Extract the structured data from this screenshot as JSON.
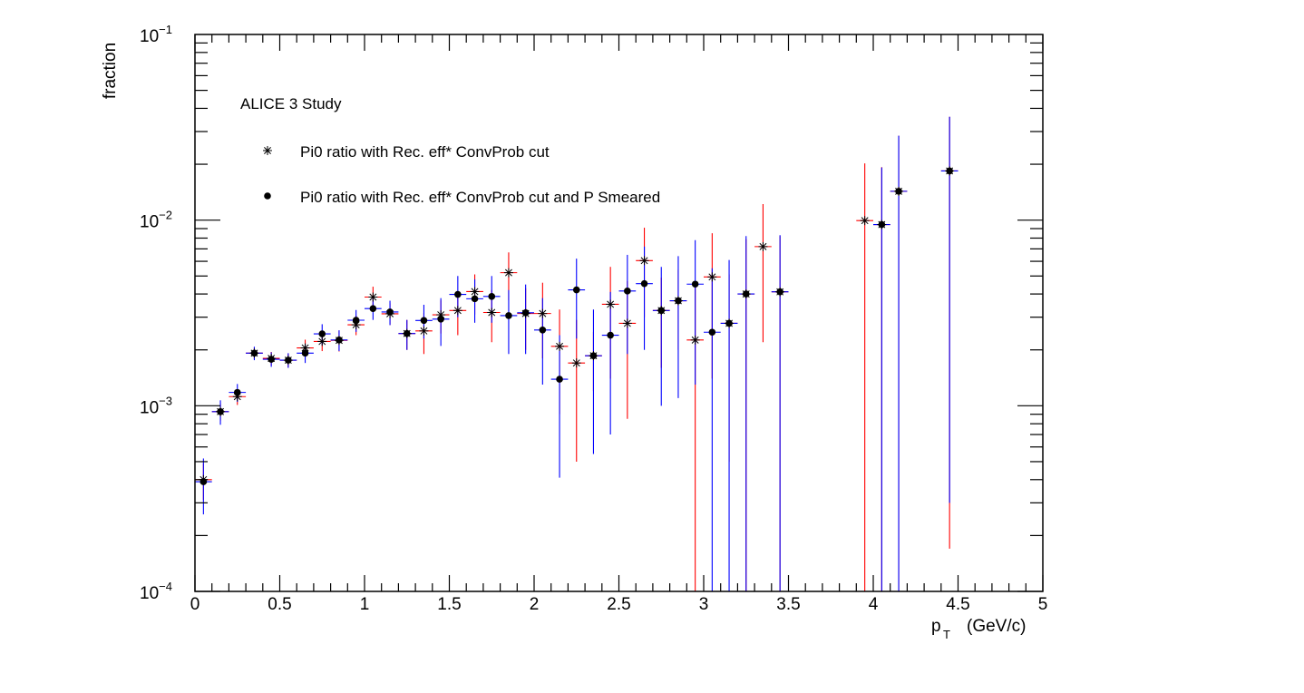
{
  "chart_data": {
    "type": "scatter",
    "title": "",
    "xlabel_main": "p",
    "xlabel_sub": "T",
    "xlabel_units": "(GeV/c)",
    "ylabel": "fraction",
    "xlim": [
      0,
      5
    ],
    "ylim": [
      0.0001,
      0.1
    ],
    "yscale": "log",
    "grid": false,
    "legend_position": "top-left",
    "annotation": "ALICE 3 Study",
    "x_ticks": [
      "0",
      "0.5",
      "1",
      "1.5",
      "2",
      "2.5",
      "3",
      "3.5",
      "4",
      "4.5",
      "5"
    ],
    "y_ticks": [
      {
        "base": "10",
        "exp": "−4"
      },
      {
        "base": "10",
        "exp": "−3"
      },
      {
        "base": "10",
        "exp": "−2"
      },
      {
        "base": "10",
        "exp": "−1"
      }
    ],
    "series": [
      {
        "name": "Pi0 ratio with Rec. eff* ConvProb cut",
        "marker": "star",
        "error_color": "#ff0000",
        "points": [
          {
            "x": 0.05,
            "y": 0.0004,
            "lo": 0.00031,
            "hi": 0.00049
          },
          {
            "x": 0.15,
            "y": 0.00093,
            "lo": 0.00083,
            "hi": 0.00103
          },
          {
            "x": 0.25,
            "y": 0.00112,
            "lo": 0.00101,
            "hi": 0.00123
          },
          {
            "x": 0.35,
            "y": 0.00192,
            "lo": 0.00178,
            "hi": 0.00206
          },
          {
            "x": 0.45,
            "y": 0.0018,
            "lo": 0.00165,
            "hi": 0.00195
          },
          {
            "x": 0.55,
            "y": 0.00176,
            "lo": 0.00161,
            "hi": 0.00191
          },
          {
            "x": 0.65,
            "y": 0.00205,
            "lo": 0.00183,
            "hi": 0.00227
          },
          {
            "x": 0.75,
            "y": 0.00222,
            "lo": 0.00197,
            "hi": 0.00247
          },
          {
            "x": 0.85,
            "y": 0.00225,
            "lo": 0.00196,
            "hi": 0.00254
          },
          {
            "x": 0.95,
            "y": 0.00273,
            "lo": 0.0024,
            "hi": 0.00306
          },
          {
            "x": 1.05,
            "y": 0.00385,
            "lo": 0.00338,
            "hi": 0.00438
          },
          {
            "x": 1.15,
            "y": 0.00313,
            "lo": 0.00272,
            "hi": 0.00356
          },
          {
            "x": 1.25,
            "y": 0.00245,
            "lo": 0.002,
            "hi": 0.0029
          },
          {
            "x": 1.35,
            "y": 0.00253,
            "lo": 0.0019,
            "hi": 0.00316
          },
          {
            "x": 1.45,
            "y": 0.00309,
            "lo": 0.00245,
            "hi": 0.0037
          },
          {
            "x": 1.55,
            "y": 0.00326,
            "lo": 0.0024,
            "hi": 0.0041
          },
          {
            "x": 1.65,
            "y": 0.00412,
            "lo": 0.0031,
            "hi": 0.0051
          },
          {
            "x": 1.75,
            "y": 0.00318,
            "lo": 0.0022,
            "hi": 0.0042
          },
          {
            "x": 1.85,
            "y": 0.00521,
            "lo": 0.0037,
            "hi": 0.0067
          },
          {
            "x": 1.95,
            "y": 0.00314,
            "lo": 0.002,
            "hi": 0.0043
          },
          {
            "x": 2.05,
            "y": 0.00314,
            "lo": 0.0018,
            "hi": 0.0046
          },
          {
            "x": 2.15,
            "y": 0.00209,
            "lo": 0.0009,
            "hi": 0.0033
          },
          {
            "x": 2.25,
            "y": 0.0017,
            "lo": 0.0005,
            "hi": 0.0029
          },
          {
            "x": 2.35,
            "y": 0.00186,
            "lo": 0.0012,
            "hi": 0.0025
          },
          {
            "x": 2.45,
            "y": 0.00352,
            "lo": 0.0014,
            "hi": 0.0056
          },
          {
            "x": 2.55,
            "y": 0.00278,
            "lo": 0.00085,
            "hi": 0.0047
          },
          {
            "x": 2.65,
            "y": 0.00605,
            "lo": 0.003,
            "hi": 0.0091
          },
          {
            "x": 2.75,
            "y": 0.00326,
            "lo": 0.0016,
            "hi": 0.0049
          },
          {
            "x": 2.85,
            "y": 0.00368,
            "lo": 0.002,
            "hi": 0.0054
          },
          {
            "x": 2.95,
            "y": 0.00226,
            "lo": 0.0001,
            "hi": 0.0046
          },
          {
            "x": 3.05,
            "y": 0.00494,
            "lo": 0.0014,
            "hi": 0.0085
          },
          {
            "x": 3.15,
            "y": 0.00278,
            "lo": 0.0005,
            "hi": 0.0051
          },
          {
            "x": 3.25,
            "y": 0.004,
            "lo": 0.0001,
            "hi": 0.0079
          },
          {
            "x": 3.35,
            "y": 0.0072,
            "lo": 0.0022,
            "hi": 0.0122
          },
          {
            "x": 3.45,
            "y": 0.00411,
            "lo": 0.0001,
            "hi": 0.0082
          },
          {
            "x": 3.95,
            "y": 0.00994,
            "lo": 0.0001,
            "hi": 0.0202
          },
          {
            "x": 4.05,
            "y": 0.00946,
            "lo": 0.0001,
            "hi": 0.0193
          },
          {
            "x": 4.15,
            "y": 0.0143,
            "lo": 0.0001,
            "hi": 0.0285
          },
          {
            "x": 4.45,
            "y": 0.0184,
            "lo": 0.00017,
            "hi": 0.036
          }
        ]
      },
      {
        "name": "Pi0 ratio with Rec. eff* ConvProb cut and P Smeared",
        "marker": "circle",
        "error_color": "#0000ff",
        "points": [
          {
            "x": 0.05,
            "y": 0.00039,
            "lo": 0.00026,
            "hi": 0.00052
          },
          {
            "x": 0.15,
            "y": 0.00093,
            "lo": 0.00079,
            "hi": 0.00107
          },
          {
            "x": 0.25,
            "y": 0.00118,
            "lo": 0.00105,
            "hi": 0.00131
          },
          {
            "x": 0.35,
            "y": 0.00192,
            "lo": 0.00176,
            "hi": 0.00208
          },
          {
            "x": 0.45,
            "y": 0.00178,
            "lo": 0.00162,
            "hi": 0.00194
          },
          {
            "x": 0.55,
            "y": 0.00176,
            "lo": 0.0016,
            "hi": 0.00192
          },
          {
            "x": 0.65,
            "y": 0.00192,
            "lo": 0.0017,
            "hi": 0.00214
          },
          {
            "x": 0.75,
            "y": 0.00244,
            "lo": 0.00213,
            "hi": 0.00275
          },
          {
            "x": 0.85,
            "y": 0.00226,
            "lo": 0.00197,
            "hi": 0.00255
          },
          {
            "x": 0.95,
            "y": 0.00289,
            "lo": 0.0025,
            "hi": 0.00328
          },
          {
            "x": 1.05,
            "y": 0.00334,
            "lo": 0.0029,
            "hi": 0.00378
          },
          {
            "x": 1.15,
            "y": 0.0032,
            "lo": 0.00272,
            "hi": 0.00368
          },
          {
            "x": 1.25,
            "y": 0.00245,
            "lo": 0.002,
            "hi": 0.0029
          },
          {
            "x": 1.35,
            "y": 0.00288,
            "lo": 0.0023,
            "hi": 0.0035
          },
          {
            "x": 1.45,
            "y": 0.00293,
            "lo": 0.0021,
            "hi": 0.0038
          },
          {
            "x": 1.55,
            "y": 0.00398,
            "lo": 0.003,
            "hi": 0.005
          },
          {
            "x": 1.65,
            "y": 0.00377,
            "lo": 0.0028,
            "hi": 0.0048
          },
          {
            "x": 1.75,
            "y": 0.00388,
            "lo": 0.0028,
            "hi": 0.005
          },
          {
            "x": 1.85,
            "y": 0.00306,
            "lo": 0.0019,
            "hi": 0.0042
          },
          {
            "x": 1.95,
            "y": 0.00317,
            "lo": 0.0019,
            "hi": 0.0045
          },
          {
            "x": 2.05,
            "y": 0.00256,
            "lo": 0.0013,
            "hi": 0.0038
          },
          {
            "x": 2.15,
            "y": 0.00139,
            "lo": 0.00041,
            "hi": 0.0024
          },
          {
            "x": 2.25,
            "y": 0.00421,
            "lo": 0.0023,
            "hi": 0.0062
          },
          {
            "x": 2.35,
            "y": 0.00186,
            "lo": 0.00055,
            "hi": 0.0033
          },
          {
            "x": 2.45,
            "y": 0.0024,
            "lo": 0.0007,
            "hi": 0.0041
          },
          {
            "x": 2.55,
            "y": 0.00415,
            "lo": 0.0019,
            "hi": 0.0065
          },
          {
            "x": 2.65,
            "y": 0.00455,
            "lo": 0.002,
            "hi": 0.0072
          },
          {
            "x": 2.75,
            "y": 0.00326,
            "lo": 0.001,
            "hi": 0.0056
          },
          {
            "x": 2.85,
            "y": 0.00368,
            "lo": 0.0011,
            "hi": 0.0064
          },
          {
            "x": 2.95,
            "y": 0.00452,
            "lo": 0.0013,
            "hi": 0.0078
          },
          {
            "x": 3.05,
            "y": 0.00249,
            "lo": 0.0001,
            "hi": 0.0055
          },
          {
            "x": 3.15,
            "y": 0.00278,
            "lo": 0.0001,
            "hi": 0.0061
          },
          {
            "x": 3.25,
            "y": 0.004,
            "lo": 0.0001,
            "hi": 0.0082
          },
          {
            "x": 3.45,
            "y": 0.00411,
            "lo": 0.0001,
            "hi": 0.0083
          },
          {
            "x": 4.05,
            "y": 0.00946,
            "lo": 0.0001,
            "hi": 0.0192
          },
          {
            "x": 4.15,
            "y": 0.0143,
            "lo": 0.0001,
            "hi": 0.0285
          },
          {
            "x": 4.45,
            "y": 0.0184,
            "lo": 0.0003,
            "hi": 0.036
          }
        ]
      }
    ]
  }
}
